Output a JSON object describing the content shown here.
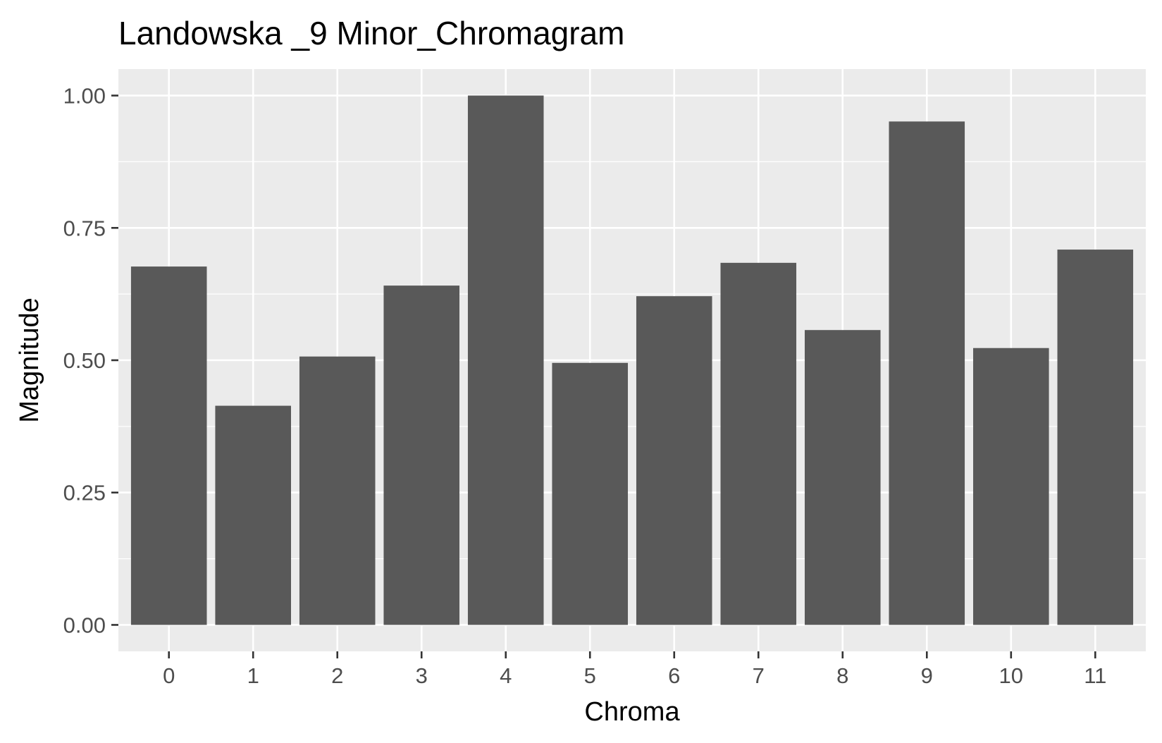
{
  "chart_data": {
    "type": "bar",
    "title": "Landowska _9 Minor_Chromagram",
    "xlabel": "Chroma",
    "ylabel": "Magnitude",
    "categories": [
      "0",
      "1",
      "2",
      "3",
      "4",
      "5",
      "6",
      "7",
      "8",
      "9",
      "10",
      "11"
    ],
    "values": [
      0.677,
      0.414,
      0.507,
      0.641,
      1.0,
      0.495,
      0.621,
      0.684,
      0.557,
      0.951,
      0.523,
      0.709
    ],
    "ylim": [
      -0.05,
      1.05
    ],
    "yticks": [
      0.0,
      0.25,
      0.5,
      0.75,
      1.0
    ],
    "ytick_labels": [
      "0.00",
      "0.25",
      "0.50",
      "0.75",
      "1.00"
    ],
    "grid": true,
    "legend": "none",
    "colors": {
      "bar": "#595959",
      "panel": "#EBEBEB",
      "gridline": "#FFFFFF",
      "tick": "#333333",
      "tick_label": "#4D4D4D",
      "text": "#000000"
    }
  }
}
